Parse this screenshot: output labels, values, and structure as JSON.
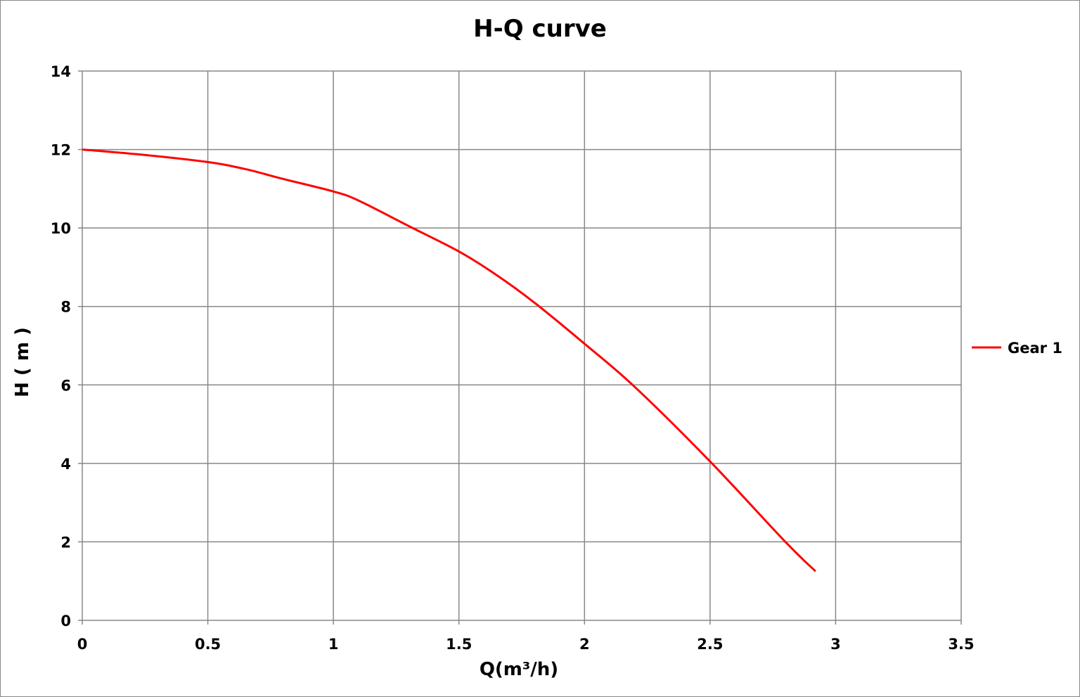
{
  "chart_data": {
    "type": "line",
    "title": "H-Q  curve",
    "xlabel": "Q(m³/h)",
    "ylabel": "H ( m )",
    "xlim": [
      0,
      3.5
    ],
    "ylim": [
      0,
      14
    ],
    "xticks": [
      "0",
      "0.5",
      "1",
      "1.5",
      "2",
      "2.5",
      "3",
      "3.5"
    ],
    "yticks": [
      "0",
      "2",
      "4",
      "6",
      "8",
      "10",
      "12",
      "14"
    ],
    "grid": true,
    "legend_position": "right",
    "series": [
      {
        "name": "Gear 1",
        "color": "#ff0000",
        "x": [
          0,
          0.25,
          0.5,
          0.65,
          0.8,
          1.0,
          1.1,
          1.3,
          1.5,
          1.65,
          1.8,
          2.0,
          2.2,
          2.5,
          2.8,
          2.92
        ],
        "y": [
          12.0,
          11.86,
          11.68,
          11.5,
          11.25,
          10.93,
          10.7,
          10.05,
          9.4,
          8.8,
          8.1,
          7.05,
          5.95,
          4.05,
          2.0,
          1.25
        ]
      }
    ]
  }
}
